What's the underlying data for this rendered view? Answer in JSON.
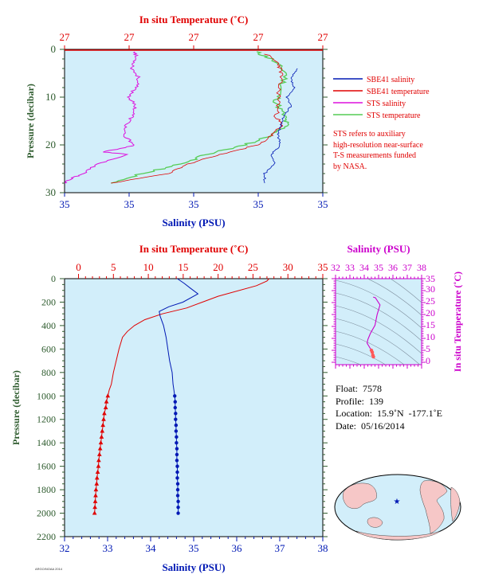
{
  "colors": {
    "background": "#d2eefa",
    "temperature": "#e00000",
    "salinity": "#0018b4",
    "pressure_axis": "#2c5a2c",
    "sts_salinity": "#dd10dd",
    "sts_temperature": "#55cc55",
    "ts_axis": "#cc00cc"
  },
  "top_panel": {
    "temp_axis_title": "In situ Temperature (˚C)",
    "temp_tick_labels": [
      "27",
      "27",
      "27",
      "27",
      "27"
    ],
    "sal_axis_title": "Salinity (PSU)",
    "sal_tick_labels": [
      "35",
      "35",
      "35",
      "35",
      "35"
    ],
    "pressure_title": "Pressure (decibar)",
    "pressure_tick_labels": [
      "0",
      "10",
      "20",
      "30"
    ],
    "legend": [
      {
        "label": "SBE41 salinity",
        "color": "#0018b4"
      },
      {
        "label": "SBE41 temperature",
        "color": "#e00000"
      },
      {
        "label": "STS salinity",
        "color": "#dd10dd"
      },
      {
        "label": "STS temperature",
        "color": "#55cc55"
      }
    ],
    "note_lines": [
      "STS refers to auxiliary",
      "high-resolution near-surface",
      "T-S measurements funded",
      "by NASA."
    ]
  },
  "main_panel": {
    "temp_axis_title": "In situ Temperature (˚C)",
    "temp_tick_labels": [
      "0",
      "5",
      "10",
      "15",
      "20",
      "25",
      "30",
      "35"
    ],
    "sal_axis_title": "Salinity (PSU)",
    "sal_tick_labels": [
      "32",
      "33",
      "34",
      "35",
      "36",
      "37",
      "38"
    ],
    "pressure_title": "Pressure (decibar)",
    "pressure_tick_labels": [
      "0",
      "200",
      "400",
      "600",
      "800",
      "1000",
      "1200",
      "1400",
      "1600",
      "1800",
      "2000",
      "2200"
    ]
  },
  "ts_panel": {
    "sal_axis_title": "Salinity (PSU)",
    "sal_tick_labels": [
      "32",
      "33",
      "34",
      "35",
      "36",
      "37",
      "38"
    ],
    "temp_axis_title": "In situ Temperature (˚C)",
    "temp_tick_labels": [
      "0",
      "5",
      "10",
      "15",
      "20",
      "25",
      "30",
      "35"
    ]
  },
  "float_info": {
    "float": "Float:  7578",
    "profile": "Profile:  139",
    "location": "Location:  15.9˚N  -177.1˚E",
    "date": "Date:  05/16/2014"
  },
  "credit": "ARGO/NOAA 2014",
  "chart_data": [
    {
      "type": "line",
      "title": "",
      "ylabel": "Pressure (decibar)",
      "xlabel_top": "In situ Temperature (˚C)",
      "xlabel_bottom": "Salinity (PSU)",
      "ylim": [
        30,
        0
      ],
      "series": [
        {
          "name": "SBE41 salinity",
          "axis": "salinity",
          "x": [
            34.72,
            34.7,
            34.71,
            34.69,
            34.7,
            34.68,
            34.67,
            34.66,
            34.67,
            34.64,
            34.65,
            34.62,
            34.62
          ],
          "y": [
            4,
            6,
            8,
            10,
            12,
            14,
            16,
            18,
            20,
            22,
            24,
            26,
            28
          ]
        },
        {
          "name": "SBE41 temperature",
          "axis": "temperature",
          "x": [
            27.78,
            27.83,
            27.84,
            27.83,
            27.83,
            27.82,
            27.84,
            27.8,
            27.75,
            27.6,
            27.48,
            27.4,
            27.18
          ],
          "y": [
            1,
            3,
            5,
            8,
            11,
            14,
            16,
            18,
            20,
            22,
            24,
            26,
            28
          ]
        },
        {
          "name": "STS salinity",
          "axis": "salinity",
          "x": [
            34.22,
            34.22,
            34.21,
            34.23,
            34.22,
            34.2,
            34.22,
            34.21,
            34.19,
            34.18,
            34.22,
            34.12,
            34.2,
            34.1,
            34.06,
            34.02,
            34.0
          ],
          "y": [
            0.5,
            2,
            4,
            6,
            8,
            10,
            12,
            14,
            16,
            18,
            20,
            21.5,
            22,
            24,
            26,
            27,
            28
          ]
        },
        {
          "name": "STS temperature",
          "axis": "temperature",
          "x": [
            27.74,
            27.8,
            27.86,
            27.84,
            27.82,
            27.85,
            27.86,
            27.8,
            27.7,
            27.55,
            27.45,
            27.3,
            27.18
          ],
          "y": [
            0.5,
            2,
            5,
            8,
            11,
            14,
            16,
            18,
            20,
            22,
            24,
            26,
            28
          ]
        }
      ]
    },
    {
      "type": "line",
      "title": "",
      "ylabel": "Pressure (decibar)",
      "xlabel_top": "In situ Temperature (˚C)",
      "xlabel_bottom": "Salinity (PSU)",
      "temperature_range": [
        -2,
        35
      ],
      "salinity_range": [
        32,
        38
      ],
      "ylim": [
        2200,
        0
      ],
      "series": [
        {
          "name": "Temperature",
          "axis": "temperature",
          "x": [
            27.3,
            27.0,
            25.5,
            20.0,
            15.5,
            12.0,
            9.5,
            8.0,
            7.0,
            6.3,
            5.8,
            5.4,
            5.0,
            4.7,
            4.4,
            4.2
          ],
          "y": [
            0,
            20,
            60,
            150,
            250,
            300,
            350,
            400,
            450,
            500,
            600,
            700,
            800,
            900,
            950,
            1000
          ]
        },
        {
          "name": "Temperature (deep samples)",
          "axis": "temperature",
          "x": [
            4.2,
            4.0,
            3.9,
            3.7,
            3.6,
            3.5,
            3.4,
            3.3,
            3.2,
            3.1,
            3.0,
            2.9,
            2.85,
            2.75,
            2.65,
            2.6,
            2.5,
            2.45,
            2.4,
            2.35,
            2.3
          ],
          "y": [
            1000,
            1050,
            1100,
            1150,
            1200,
            1250,
            1300,
            1350,
            1400,
            1450,
            1500,
            1550,
            1600,
            1650,
            1700,
            1750,
            1800,
            1850,
            1900,
            1950,
            2000
          ]
        },
        {
          "name": "Salinity",
          "axis": "salinity",
          "x": [
            34.62,
            34.78,
            34.92,
            35.1,
            34.75,
            34.42,
            34.2,
            34.22,
            34.3,
            34.36,
            34.4,
            34.44,
            34.5,
            34.52,
            34.54,
            34.56
          ],
          "y": [
            0,
            40,
            80,
            130,
            200,
            240,
            280,
            320,
            400,
            500,
            600,
            700,
            800,
            900,
            950,
            1000
          ]
        },
        {
          "name": "Salinity (deep samples)",
          "axis": "salinity",
          "x": [
            34.56,
            34.57,
            34.57,
            34.58,
            34.58,
            34.59,
            34.59,
            34.6,
            34.6,
            34.61,
            34.61,
            34.61,
            34.62,
            34.62,
            34.62,
            34.63,
            34.63,
            34.63,
            34.64,
            34.64,
            34.64
          ],
          "y": [
            1000,
            1050,
            1100,
            1150,
            1200,
            1250,
            1300,
            1350,
            1400,
            1450,
            1500,
            1550,
            1600,
            1650,
            1700,
            1750,
            1800,
            1850,
            1900,
            1950,
            2000
          ]
        }
      ]
    },
    {
      "type": "scatter",
      "title": "",
      "xlabel": "Salinity (PSU)",
      "ylabel": "In situ Temperature (˚C)",
      "xlim": [
        32,
        38
      ],
      "ylim": [
        -1,
        35
      ],
      "series": [
        {
          "name": "T-S profile",
          "x": [
            34.62,
            34.78,
            35.1,
            34.9,
            34.75,
            34.42,
            34.25,
            34.2,
            34.3,
            34.4,
            34.5,
            34.56,
            34.6,
            34.64
          ],
          "y": [
            27.3,
            27.0,
            24.0,
            20.0,
            15.5,
            12.0,
            9.5,
            8.0,
            7.0,
            6.0,
            5.0,
            4.2,
            3.0,
            2.3
          ]
        }
      ]
    }
  ]
}
